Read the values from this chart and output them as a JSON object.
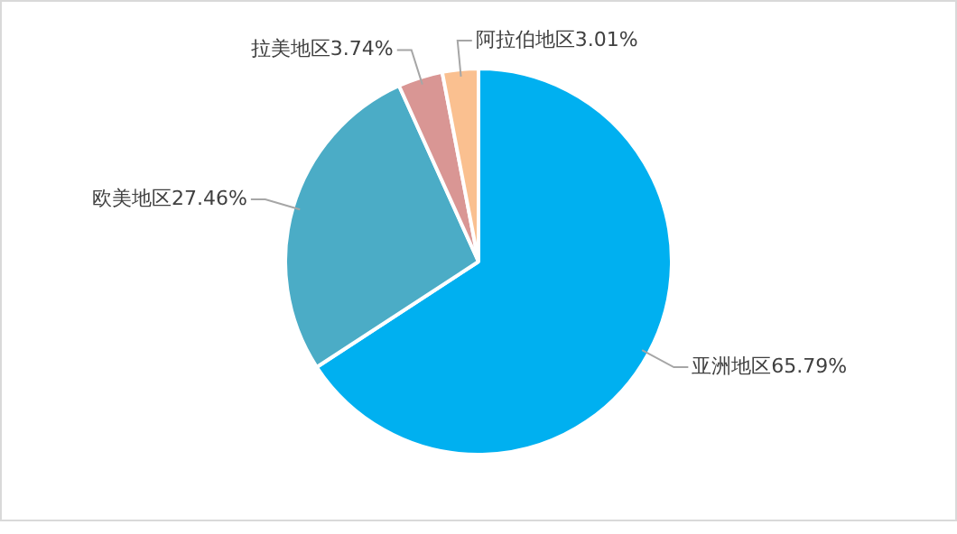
{
  "chart_data": {
    "type": "pie",
    "categories": [
      "亚洲地区",
      "欧美地区",
      "拉美地区",
      "阿拉伯地区"
    ],
    "values": [
      65.79,
      27.46,
      3.74,
      3.01
    ],
    "colors": [
      "#00b0f0",
      "#4bacc6",
      "#d99694",
      "#fac090"
    ],
    "value_labels": [
      "65.79%",
      "27.46%",
      "3.74%",
      "3.01%"
    ],
    "legend": false
  }
}
